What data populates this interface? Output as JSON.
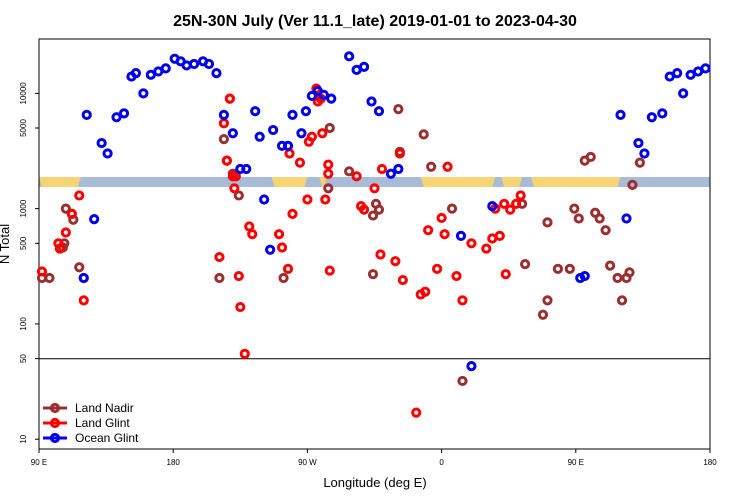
{
  "chart_data": {
    "type": "scatter",
    "title": "25N-30N July (Ver 11.1_late)   2019-01-01 to 2023-04-30",
    "xlabel": "Longitude (deg E)",
    "ylabel": "N Total",
    "x_ticks": [
      {
        "value": 90,
        "label": "90 E"
      },
      {
        "value": 180,
        "label": "180"
      },
      {
        "value": 270,
        "label": "90 W"
      },
      {
        "value": 360,
        "label": "0"
      },
      {
        "value": 450,
        "label": "90 E"
      },
      {
        "value": 540,
        "label": "180"
      }
    ],
    "xlim": [
      90,
      540
    ],
    "y_scale": "log",
    "y_ticks_lower": [
      10,
      50,
      100,
      500,
      1000
    ],
    "y_ticks_upper": [
      5000,
      10000
    ],
    "reference_line": 50,
    "grid": false,
    "legend_position": "bottom-left",
    "colors": {
      "land_nadir": "#9b2f2f",
      "land_glint": "#ff0000",
      "ocean_glint": "#0000ee",
      "band_ocean": "#a8bcd8",
      "band_land": "#f7d574"
    },
    "band_land_ranges": [
      [
        90,
        118
      ],
      [
        246,
        270
      ],
      [
        278,
        283
      ],
      [
        346,
        396
      ],
      [
        400,
        414
      ],
      [
        420,
        480
      ]
    ],
    "series": [
      {
        "name": "Land Nadir",
        "key": "land_nadir",
        "points": [
          [
            92,
            250
          ],
          [
            97,
            250
          ],
          [
            106,
            460
          ],
          [
            107,
            500
          ],
          [
            108,
            1000
          ],
          [
            112,
            900
          ],
          [
            113,
            800
          ],
          [
            117,
            310
          ],
          [
            120,
            250
          ],
          [
            211,
            250
          ],
          [
            214,
            4000
          ],
          [
            216,
            2600
          ],
          [
            218,
            9000
          ],
          [
            220,
            2000
          ],
          [
            224,
            1300
          ],
          [
            254,
            250
          ],
          [
            284,
            1500
          ],
          [
            285,
            5000
          ],
          [
            298,
            2100
          ],
          [
            314,
            870
          ],
          [
            316,
            1100
          ],
          [
            314,
            270
          ],
          [
            318,
            980
          ],
          [
            332,
            3100
          ],
          [
            331,
            7300
          ],
          [
            348,
            4400
          ],
          [
            353,
            2300
          ],
          [
            367,
            1000
          ],
          [
            374,
            32
          ],
          [
            414,
            1100
          ],
          [
            416,
            330
          ],
          [
            428,
            120
          ],
          [
            431,
            760
          ],
          [
            431,
            160
          ],
          [
            438,
            300
          ],
          [
            446,
            300
          ],
          [
            449,
            1000
          ],
          [
            452,
            820
          ],
          [
            456,
            2600
          ],
          [
            460,
            2800
          ],
          [
            463,
            920
          ],
          [
            466,
            820
          ],
          [
            470,
            650
          ],
          [
            473,
            320
          ],
          [
            478,
            250
          ],
          [
            481,
            160
          ],
          [
            484,
            250
          ],
          [
            486,
            280
          ],
          [
            488,
            1600
          ],
          [
            493,
            2500
          ]
        ]
      },
      {
        "name": "Land Glint",
        "key": "land_glint",
        "points": [
          [
            92,
            285
          ],
          [
            103,
            500
          ],
          [
            104,
            450
          ],
          [
            108,
            620
          ],
          [
            112,
            900
          ],
          [
            117,
            1300
          ],
          [
            120,
            160
          ],
          [
            211,
            380
          ],
          [
            214,
            5500
          ],
          [
            216,
            2600
          ],
          [
            218,
            9000
          ],
          [
            220,
            1900
          ],
          [
            221,
            1500
          ],
          [
            222,
            1900
          ],
          [
            224,
            260
          ],
          [
            225,
            140
          ],
          [
            228,
            55
          ],
          [
            231,
            700
          ],
          [
            233,
            600
          ],
          [
            251,
            600
          ],
          [
            253,
            460
          ],
          [
            257,
            300
          ],
          [
            258,
            3000
          ],
          [
            260,
            900
          ],
          [
            265,
            2500
          ],
          [
            270,
            1200
          ],
          [
            271,
            3800
          ],
          [
            273,
            4200
          ],
          [
            276,
            11000
          ],
          [
            277,
            8500
          ],
          [
            279,
            9000
          ],
          [
            280,
            4500
          ],
          [
            284,
            2000
          ],
          [
            285,
            290
          ],
          [
            284,
            2400
          ],
          [
            282,
            1200
          ],
          [
            303,
            1900
          ],
          [
            306,
            1050
          ],
          [
            308,
            980
          ],
          [
            315,
            1500
          ],
          [
            319,
            400
          ],
          [
            320,
            2200
          ],
          [
            329,
            350
          ],
          [
            332,
            3000
          ],
          [
            334,
            240
          ],
          [
            343,
            17
          ],
          [
            346,
            180
          ],
          [
            349,
            190
          ],
          [
            351,
            650
          ],
          [
            357,
            300
          ],
          [
            360,
            830
          ],
          [
            362,
            600
          ],
          [
            364,
            2300
          ],
          [
            370,
            260
          ],
          [
            374,
            160
          ],
          [
            380,
            500
          ],
          [
            390,
            450
          ],
          [
            394,
            550
          ],
          [
            396,
            1000
          ],
          [
            399,
            580
          ],
          [
            402,
            1100
          ],
          [
            403,
            270
          ],
          [
            406,
            980
          ],
          [
            410,
            1100
          ],
          [
            413,
            1300
          ]
        ]
      },
      {
        "name": "Ocean Glint",
        "key": "ocean_glint",
        "points": [
          [
            120,
            250
          ],
          [
            122,
            6500
          ],
          [
            127,
            810
          ],
          [
            132,
            3700
          ],
          [
            136,
            3000
          ],
          [
            142,
            6200
          ],
          [
            147,
            6700
          ],
          [
            152,
            14000
          ],
          [
            155,
            15000
          ],
          [
            160,
            10000
          ],
          [
            165,
            14500
          ],
          [
            170,
            15500
          ],
          [
            175,
            16500
          ],
          [
            181,
            20000
          ],
          [
            185,
            19000
          ],
          [
            189,
            17500
          ],
          [
            194,
            18000
          ],
          [
            200,
            19000
          ],
          [
            204,
            18000
          ],
          [
            209,
            15000
          ],
          [
            214,
            6500
          ],
          [
            220,
            4500
          ],
          [
            225,
            2200
          ],
          [
            229,
            2200
          ],
          [
            235,
            7000
          ],
          [
            238,
            4200
          ],
          [
            241,
            1200
          ],
          [
            245,
            440
          ],
          [
            247,
            4800
          ],
          [
            253,
            3500
          ],
          [
            257,
            3500
          ],
          [
            260,
            6500
          ],
          [
            266,
            4500
          ],
          [
            269,
            7000
          ],
          [
            273,
            9500
          ],
          [
            277,
            10500
          ],
          [
            281,
            9700
          ],
          [
            286,
            9000
          ],
          [
            298,
            21000
          ],
          [
            303,
            16000
          ],
          [
            308,
            17000
          ],
          [
            313,
            8500
          ],
          [
            318,
            7000
          ],
          [
            326,
            2000
          ],
          [
            331,
            2200
          ],
          [
            373,
            580
          ],
          [
            380,
            43
          ],
          [
            394,
            1050
          ],
          [
            453,
            250
          ],
          [
            456,
            260
          ],
          [
            480,
            6500
          ],
          [
            484,
            820
          ],
          [
            492,
            3700
          ],
          [
            496,
            3000
          ],
          [
            501,
            6200
          ],
          [
            508,
            6700
          ],
          [
            513,
            14000
          ],
          [
            518,
            15000
          ],
          [
            522,
            10000
          ],
          [
            527,
            14500
          ],
          [
            532,
            15500
          ],
          [
            537,
            16500
          ]
        ]
      }
    ]
  }
}
